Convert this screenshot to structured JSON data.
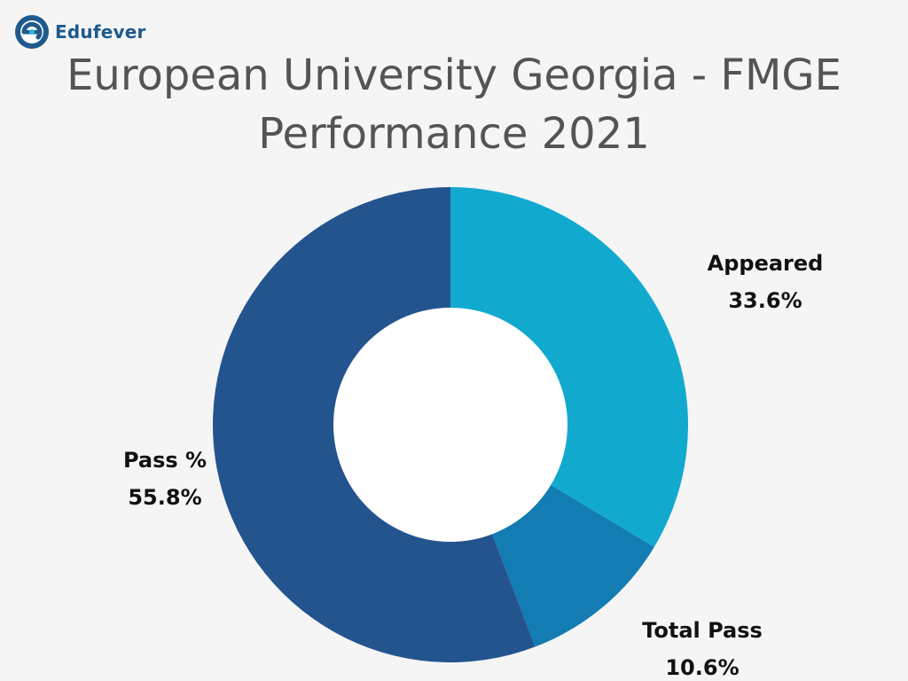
{
  "brand": {
    "name": "Edufever",
    "icon": "edufever-logo-icon",
    "color": "#1e5a8c"
  },
  "chart_data": {
    "type": "pie",
    "donut": true,
    "title": "European University Georgia - FMGE Performance 2021",
    "start": "12 o'clock",
    "direction": "clockwise",
    "slices": [
      {
        "label": "Appeared",
        "value": 33.6,
        "value_label": "33.6%",
        "color": "#12a9cf"
      },
      {
        "label": "Total Pass",
        "value": 10.6,
        "value_label": "10.6%",
        "color": "#137cb3"
      },
      {
        "label": "Pass %",
        "value": 55.8,
        "value_label": "55.8%",
        "color": "#23548e"
      }
    ],
    "legend": "none"
  }
}
